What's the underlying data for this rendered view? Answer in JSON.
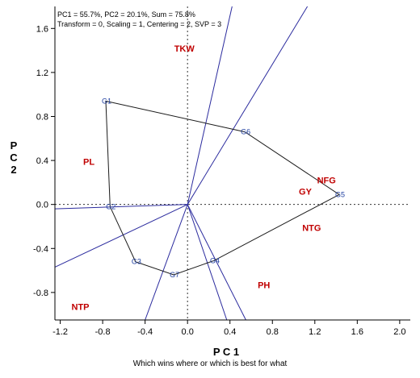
{
  "chart_data": {
    "type": "scatter",
    "title": "PC1 = 55.7%, PC2 = 20.1%, Sum = 75.8%",
    "subtitle": "Transform = 0, Scaling = 1, Centering = 2, SVP = 3",
    "xlabel": "P C 1",
    "ylabel": "P C 2",
    "caption": "Which wins where or which is best for what",
    "xlim": [
      -1.25,
      2.1
    ],
    "ylim": [
      -1.05,
      1.8
    ],
    "x_ticks": [
      -1.2,
      -0.8,
      -0.4,
      0.0,
      0.4,
      0.8,
      1.2,
      1.6,
      2.0
    ],
    "x_tick_labels": [
      "-1.2",
      "-0.8",
      "-0.4",
      "0.0",
      "0.4",
      "0.8",
      "1.2",
      "1.6",
      "2.0"
    ],
    "y_ticks": [
      -0.8,
      -0.4,
      0.0,
      0.4,
      0.8,
      1.2,
      1.6
    ],
    "y_tick_labels": [
      "-0.8",
      "-0.4",
      "0.0",
      "0.4",
      "0.8",
      "1.2",
      "1.6"
    ],
    "reference_lines": {
      "x": 0,
      "y": 0,
      "style": "dotted"
    },
    "genotypes": [
      {
        "label": "G1",
        "x": -0.77,
        "y": 0.94
      },
      {
        "label": "G2",
        "x": -0.73,
        "y": -0.02
      },
      {
        "label": "G3",
        "x": -0.49,
        "y": -0.52
      },
      {
        "label": "G4",
        "x": 0.25,
        "y": -0.51
      },
      {
        "label": "G5",
        "x": 1.43,
        "y": 0.09
      },
      {
        "label": "G6",
        "x": 0.54,
        "y": 0.66
      },
      {
        "label": "G7",
        "x": -0.13,
        "y": -0.64
      }
    ],
    "polygon_order": [
      "G1",
      "G6",
      "G5",
      "G4",
      "G7",
      "G3",
      "G2"
    ],
    "traits": [
      {
        "label": "TKW",
        "x": -0.03,
        "y": 1.42
      },
      {
        "label": "PL",
        "x": -0.93,
        "y": 0.39
      },
      {
        "label": "NFG",
        "x": 1.31,
        "y": 0.22
      },
      {
        "label": "GY",
        "x": 1.11,
        "y": 0.12
      },
      {
        "label": "NTG",
        "x": 1.17,
        "y": -0.21
      },
      {
        "label": "PH",
        "x": 0.72,
        "y": -0.73
      },
      {
        "label": "NTP",
        "x": -1.01,
        "y": -0.93
      }
    ],
    "sector_ray_ends": [
      {
        "x": 0.42,
        "y": 1.8
      },
      {
        "x": 1.13,
        "y": 1.8
      },
      {
        "x": -1.25,
        "y": -0.57
      },
      {
        "x": -1.25,
        "y": -0.04
      },
      {
        "x": -0.4,
        "y": -1.05
      },
      {
        "x": 0.37,
        "y": -1.05
      },
      {
        "x": 0.55,
        "y": -1.05
      }
    ],
    "colors": {
      "polygon": "#1a1a1a",
      "rays": "#2b2b9e",
      "traits": "#c00000",
      "genotypes": "#1f3fa0",
      "reference": "#333333"
    }
  }
}
